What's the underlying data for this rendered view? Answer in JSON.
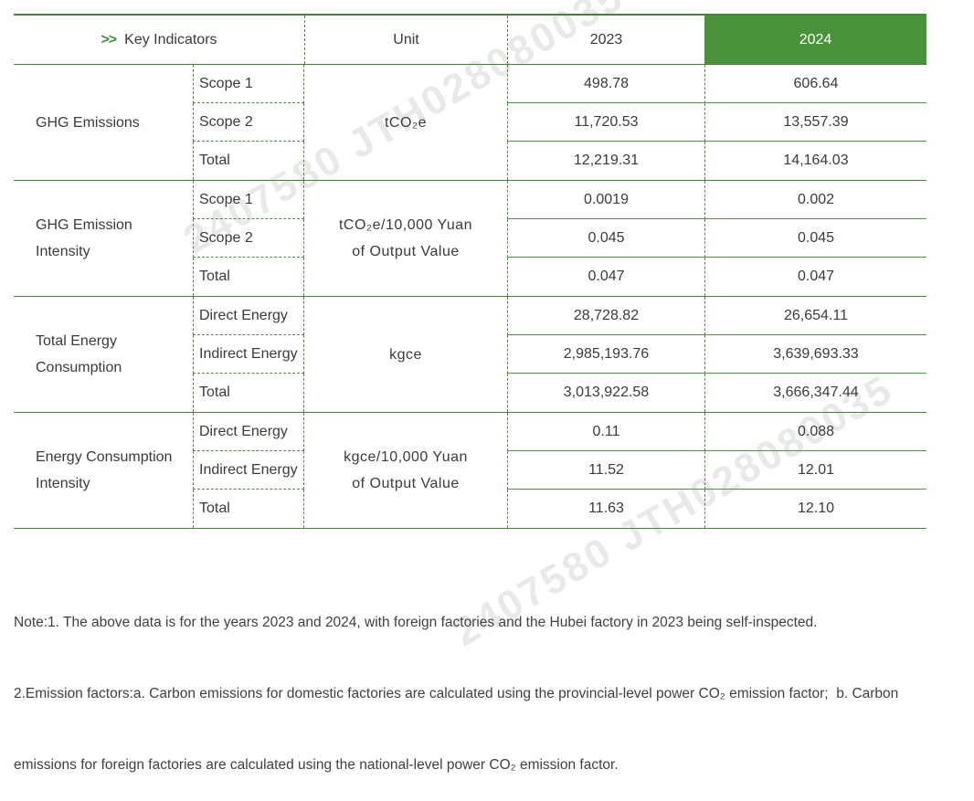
{
  "watermark": {
    "text": "2407580 JTH028080035"
  },
  "table": {
    "header": {
      "chevron": ">>",
      "key_indicators": "Key Indicators",
      "unit": "Unit",
      "col_2023": "2023",
      "col_2024": "2024"
    },
    "sections": [
      {
        "group": "GHG Emissions",
        "unit_line1": "tCO₂e",
        "unit_line2": "",
        "rows": [
          {
            "label": "Scope 1",
            "v2023": "498.78",
            "v2024": "606.64"
          },
          {
            "label": "Scope 2",
            "v2023": "11,720.53",
            "v2024": "13,557.39"
          },
          {
            "label": "Total",
            "v2023": "12,219.31",
            "v2024": "14,164.03"
          }
        ]
      },
      {
        "group": "GHG Emission Intensity",
        "unit_line1": "tCO₂e/10,000 Yuan",
        "unit_line2": "of Output Value",
        "rows": [
          {
            "label": "Scope 1",
            "v2023": "0.0019",
            "v2024": "0.002"
          },
          {
            "label": "Scope 2",
            "v2023": "0.045",
            "v2024": "0.045"
          },
          {
            "label": "Total",
            "v2023": "0.047",
            "v2024": "0.047"
          }
        ]
      },
      {
        "group": "Total Energy Consumption",
        "unit_line1": "kgce",
        "unit_line2": "",
        "rows": [
          {
            "label": "Direct Energy",
            "v2023": "28,728.82",
            "v2024": "26,654.11"
          },
          {
            "label": "Indirect Energy",
            "v2023": "2,985,193.76",
            "v2024": "3,639,693.33"
          },
          {
            "label": "Total",
            "v2023": "3,013,922.58",
            "v2024": "3,666,347.44"
          }
        ]
      },
      {
        "group": "Energy Consumption Intensity",
        "unit_line1": "kgce/10,000 Yuan",
        "unit_line2": "of Output Value",
        "rows": [
          {
            "label": "Direct Energy",
            "v2023": "0.11",
            "v2024": "0.088"
          },
          {
            "label": "Indirect Energy",
            "v2023": "11.52",
            "v2024": "12.01"
          },
          {
            "label": "Total",
            "v2023": "11.63",
            "v2024": "12.10"
          }
        ]
      }
    ]
  },
  "notes": {
    "line1": "Note:1. The above data is for the years 2023 and 2024, with foreign factories and the Hubei factory in 2023 being self-inspected.",
    "line2": "2.Emission factors:a. Carbon emissions for domestic factories are calculated using the provincial-level power CO₂ emission factor;  b. Carbon",
    "line3": "emissions for foreign factories are calculated using the national-level power CO₂ emission factor."
  },
  "colors": {
    "header_green": "#4b923c",
    "line_green": "#47823b",
    "dashed_green": "#4e8a42",
    "text_dark": "#3b3b3b",
    "watermark_gray": "#e9e9e9"
  }
}
